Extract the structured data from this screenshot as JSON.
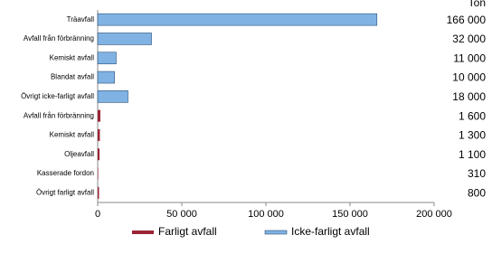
{
  "chart_data": {
    "type": "hbar",
    "value_header": "Ton",
    "categories": [
      "Träavfall",
      "Avfall från förbränning",
      "Kemiskt avfall",
      "Blandat avfall",
      "Övrigt icke-farligt avfall",
      "Avfall från förbränning",
      "Kemiskt avfall",
      "Oljeavfall",
      "Kasserade fordon",
      "Övrigt farligt avfall"
    ],
    "series": [
      {
        "name": "Farligt avfall",
        "color": "#9b2335",
        "values": [
          null,
          null,
          null,
          null,
          null,
          1600,
          1300,
          1100,
          310,
          800
        ],
        "value_labels": [
          null,
          null,
          null,
          null,
          null,
          "1 600",
          "1 300",
          "1 100",
          "310",
          "800"
        ]
      },
      {
        "name": "Icke-farligt avfall",
        "color": "#80b3e3",
        "values": [
          166000,
          32000,
          11000,
          10000,
          18000,
          null,
          null,
          null,
          null,
          null
        ],
        "value_labels": [
          "166 000",
          "32 000",
          "11 000",
          "10 000",
          "18 000",
          null,
          null,
          null,
          null,
          null
        ]
      }
    ],
    "xlim": [
      0,
      200000
    ],
    "xticks": [
      0,
      {
        "value": 50000,
        "label": "50 000"
      },
      {
        "value": 100000,
        "label": "100 000"
      },
      {
        "value": 150000,
        "label": "150 000"
      },
      {
        "value": 200000,
        "label": "200 000"
      }
    ],
    "grid": false
  }
}
